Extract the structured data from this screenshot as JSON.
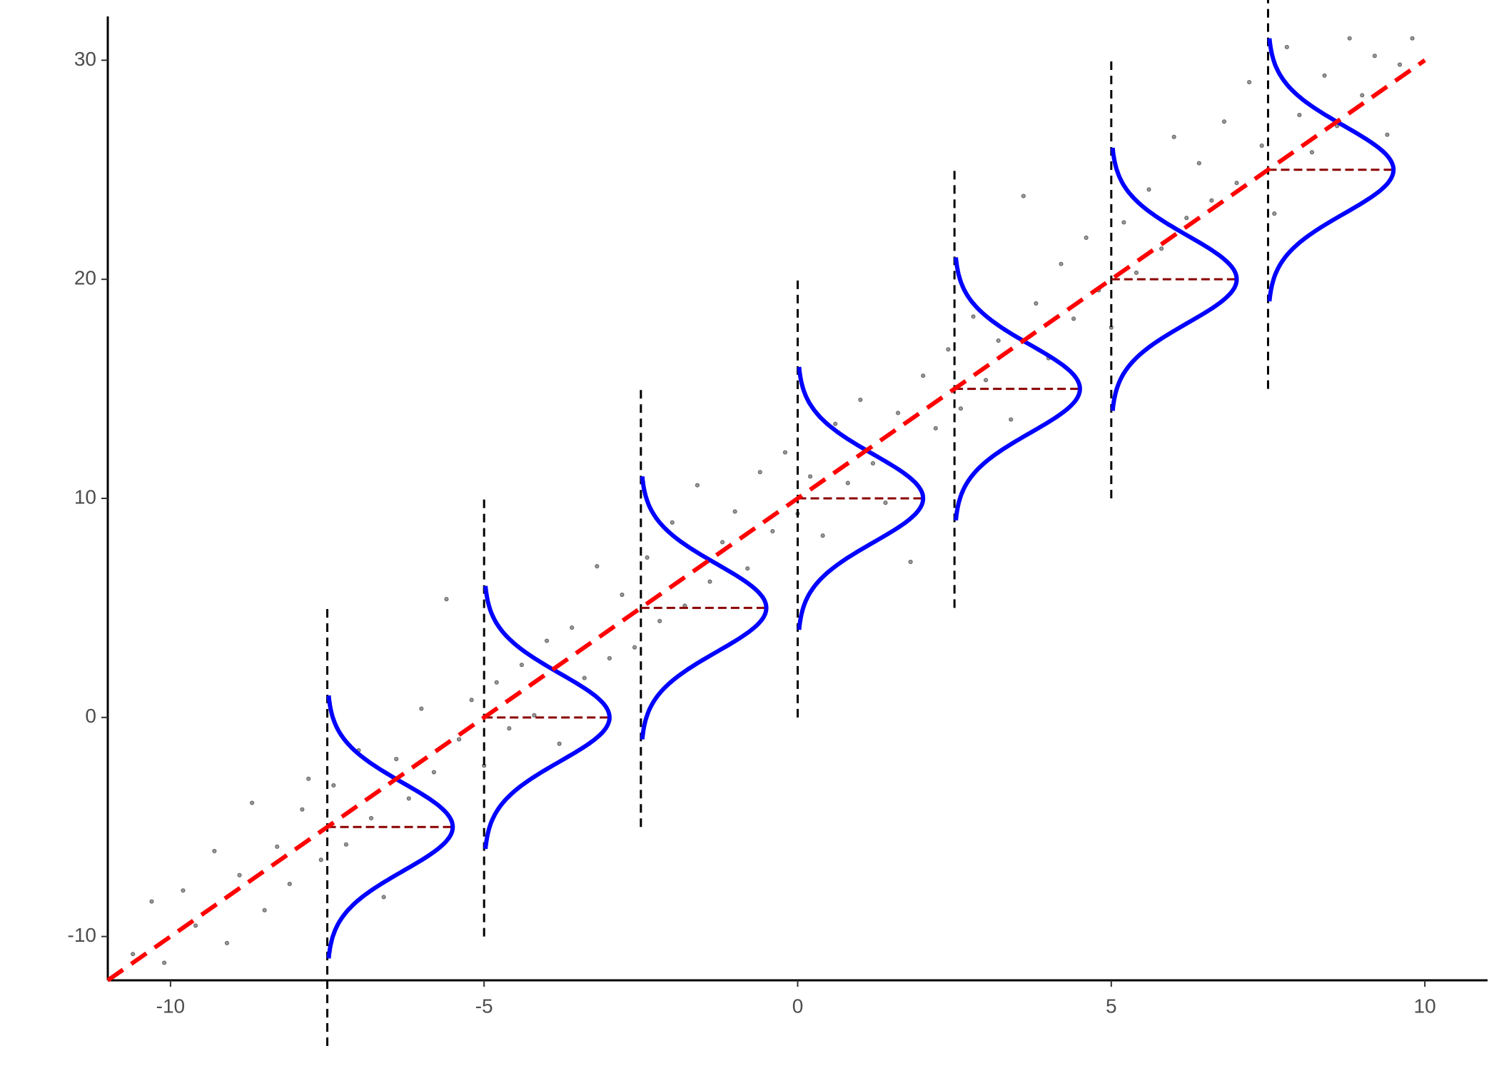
{
  "chart_data": {
    "type": "scatter",
    "xlim": [
      -11,
      11
    ],
    "ylim": [
      -12,
      32
    ],
    "xticks": [
      -10,
      -5,
      0,
      5,
      10
    ],
    "yticks": [
      -10,
      0,
      10,
      20,
      30
    ],
    "grid": false,
    "points": {
      "color": "#555555",
      "x": [
        -10.6,
        -10.3,
        -10.1,
        -9.8,
        -9.6,
        -9.3,
        -9.1,
        -8.9,
        -8.7,
        -8.5,
        -8.3,
        -8.1,
        -7.9,
        -7.8,
        -7.6,
        -7.4,
        -7.2,
        -7.0,
        -6.8,
        -6.6,
        -6.4,
        -6.2,
        -6.0,
        -5.8,
        -5.6,
        -5.4,
        -5.2,
        -5.0,
        -4.8,
        -4.6,
        -4.4,
        -4.2,
        -4.0,
        -3.8,
        -3.6,
        -3.4,
        -3.2,
        -3.0,
        -2.8,
        -2.6,
        -2.4,
        -2.2,
        -2.0,
        -1.8,
        -1.6,
        -1.4,
        -1.2,
        -1.0,
        -0.8,
        -0.6,
        -0.4,
        -0.2,
        0.0,
        0.2,
        0.4,
        0.6,
        0.8,
        1.0,
        1.2,
        1.4,
        1.6,
        1.8,
        2.0,
        2.2,
        2.4,
        2.6,
        2.8,
        3.0,
        3.2,
        3.4,
        3.6,
        3.8,
        4.0,
        4.2,
        4.4,
        4.6,
        4.8,
        5.0,
        5.2,
        5.4,
        5.6,
        5.8,
        6.0,
        6.2,
        6.4,
        6.6,
        6.8,
        7.0,
        7.2,
        7.4,
        7.6,
        7.8,
        8.0,
        8.2,
        8.4,
        8.6,
        8.8,
        9.0,
        9.2,
        9.4,
        9.6,
        9.8
      ],
      "y": [
        -10.8,
        -8.4,
        -11.2,
        -7.9,
        -9.5,
        -6.1,
        -10.3,
        -7.2,
        -3.9,
        -8.8,
        -5.9,
        -7.6,
        -4.2,
        -2.8,
        -6.5,
        -3.1,
        -5.8,
        -1.5,
        -4.6,
        -8.2,
        -1.9,
        -3.7,
        0.4,
        -2.5,
        5.4,
        -1.0,
        0.8,
        -2.2,
        1.6,
        -0.5,
        2.4,
        0.1,
        3.5,
        -1.2,
        4.1,
        1.8,
        6.9,
        2.7,
        5.6,
        3.2,
        7.3,
        4.4,
        8.9,
        5.1,
        10.6,
        6.2,
        8.0,
        9.4,
        6.8,
        11.2,
        8.5,
        12.1,
        9.3,
        11.0,
        8.3,
        13.4,
        10.7,
        14.5,
        11.6,
        9.8,
        13.9,
        7.1,
        15.6,
        13.2,
        16.8,
        14.1,
        18.3,
        15.4,
        17.2,
        13.6,
        23.8,
        18.9,
        16.4,
        20.7,
        18.2,
        21.9,
        19.5,
        17.8,
        22.6,
        20.3,
        24.1,
        21.4,
        26.5,
        22.8,
        25.3,
        23.6,
        27.2,
        24.4,
        29.0,
        26.1,
        23.0,
        30.6,
        27.5,
        25.8,
        29.3,
        27.0,
        31.0,
        28.4,
        30.2,
        26.6,
        29.8,
        31.0
      ]
    },
    "fit": {
      "color": "#ff0000",
      "x": [
        -11,
        10
      ],
      "y": [
        -12,
        30
      ]
    },
    "densities": {
      "color": "#0000ff",
      "guide_color": "#000000",
      "mean_color": "#8b0000",
      "x": [
        -7.5,
        -5,
        -2.5,
        0,
        2.5,
        5,
        7.5
      ],
      "mean": [
        -5,
        0,
        5,
        10,
        15,
        20,
        25
      ],
      "sd": 2,
      "peak": 2,
      "range_sd": 3,
      "guide_halflength": 10
    }
  }
}
